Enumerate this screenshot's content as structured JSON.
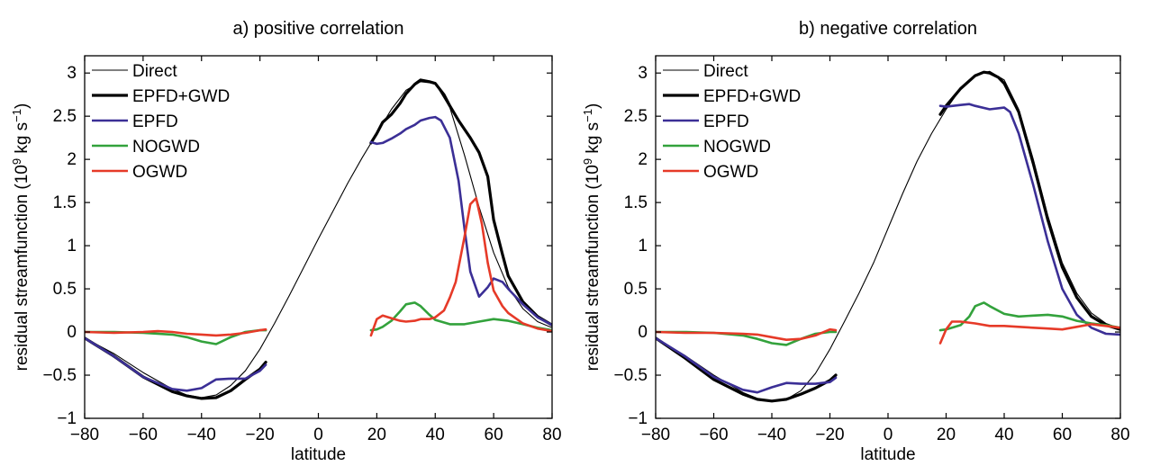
{
  "chart_data": [
    {
      "type": "line",
      "title": "a) positive correlation",
      "xlabel": "latitude",
      "ylabel_main": "residual streamfunction (10",
      "ylabel_exp1": "9",
      "ylabel_mid": " kg s",
      "ylabel_exp2": "−1",
      "ylabel_end": ")",
      "xlim": [
        -80,
        80
      ],
      "ylim": [
        -1,
        3.2
      ],
      "x_ticks": [
        -80,
        -60,
        -40,
        -20,
        0,
        20,
        40,
        60,
        80
      ],
      "y_ticks": [
        -1,
        -0.5,
        0,
        0.5,
        1,
        1.5,
        2,
        2.5,
        3
      ],
      "grid": false,
      "legend_position": "top-left",
      "series": [
        {
          "name": "Direct",
          "color": "#000000",
          "width": 1.1,
          "x": [
            -80,
            -70,
            -60,
            -50,
            -45,
            -40,
            -35,
            -30,
            -25,
            -20,
            -15,
            -10,
            -5,
            0,
            5,
            10,
            15,
            20,
            25,
            30,
            35,
            40,
            45,
            50,
            55,
            60,
            65,
            70,
            75,
            80
          ],
          "y": [
            -0.07,
            -0.25,
            -0.47,
            -0.66,
            -0.73,
            -0.76,
            -0.73,
            -0.62,
            -0.45,
            -0.2,
            0.1,
            0.42,
            0.75,
            1.08,
            1.4,
            1.72,
            2.02,
            2.3,
            2.58,
            2.8,
            2.9,
            2.88,
            2.6,
            2.05,
            1.45,
            0.92,
            0.52,
            0.27,
            0.12,
            0.05
          ]
        },
        {
          "name": "EPFD+GWD",
          "color": "#000000",
          "width": 3.2,
          "x": [
            -80,
            -70,
            -60,
            -50,
            -45,
            -40,
            -35,
            -30,
            -25,
            -20,
            -18,
            null,
            18,
            20,
            22,
            25,
            28,
            30,
            33,
            35,
            38,
            40,
            43,
            45,
            48,
            50,
            52,
            55,
            58,
            60,
            63,
            65,
            70,
            75,
            80
          ],
          "y": [
            -0.07,
            -0.28,
            -0.52,
            -0.69,
            -0.74,
            -0.77,
            -0.76,
            -0.68,
            -0.55,
            -0.43,
            -0.35,
            null,
            2.19,
            2.3,
            2.43,
            2.52,
            2.65,
            2.76,
            2.87,
            2.92,
            2.9,
            2.88,
            2.75,
            2.62,
            2.45,
            2.35,
            2.25,
            2.08,
            1.8,
            1.3,
            0.9,
            0.65,
            0.35,
            0.18,
            0.08
          ]
        },
        {
          "name": "EPFD",
          "color": "#3b2f96",
          "width": 2.6,
          "x": [
            -80,
            -70,
            -60,
            -50,
            -45,
            -40,
            -35,
            -30,
            -25,
            -20,
            -18,
            null,
            18,
            20,
            22,
            25,
            28,
            30,
            33,
            35,
            38,
            40,
            42,
            45,
            48,
            50,
            52,
            55,
            58,
            60,
            63,
            65,
            70,
            75,
            80
          ],
          "y": [
            -0.07,
            -0.28,
            -0.52,
            -0.66,
            -0.68,
            -0.65,
            -0.55,
            -0.54,
            -0.54,
            -0.45,
            -0.38,
            null,
            2.2,
            2.18,
            2.19,
            2.24,
            2.3,
            2.35,
            2.4,
            2.45,
            2.48,
            2.49,
            2.45,
            2.25,
            1.75,
            1.2,
            0.7,
            0.41,
            0.52,
            0.62,
            0.58,
            0.5,
            0.32,
            0.17,
            0.08
          ]
        },
        {
          "name": "NOGWD",
          "color": "#33a23c",
          "width": 2.6,
          "x": [
            -80,
            -70,
            -60,
            -50,
            -45,
            -40,
            -35,
            -30,
            -25,
            -20,
            -18,
            null,
            18,
            20,
            22,
            25,
            28,
            30,
            33,
            35,
            38,
            40,
            45,
            50,
            55,
            60,
            65,
            70,
            75,
            80
          ],
          "y": [
            0.0,
            0.0,
            -0.01,
            -0.03,
            -0.06,
            -0.11,
            -0.14,
            -0.06,
            0.0,
            0.02,
            0.02,
            null,
            0.02,
            0.03,
            0.06,
            0.13,
            0.24,
            0.32,
            0.34,
            0.3,
            0.2,
            0.14,
            0.09,
            0.09,
            0.12,
            0.15,
            0.13,
            0.09,
            0.05,
            0.02
          ]
        },
        {
          "name": "OGWD",
          "color": "#e63a28",
          "width": 2.6,
          "x": [
            -80,
            -70,
            -60,
            -55,
            -50,
            -45,
            -40,
            -35,
            -30,
            -25,
            -20,
            -18,
            null,
            18,
            20,
            22,
            25,
            28,
            30,
            33,
            35,
            38,
            40,
            43,
            45,
            47,
            50,
            52,
            54,
            56,
            58,
            60,
            63,
            65,
            70,
            75,
            80
          ],
          "y": [
            0.0,
            -0.01,
            0.0,
            0.01,
            0.0,
            -0.02,
            -0.03,
            -0.04,
            -0.03,
            -0.01,
            0.02,
            0.03,
            null,
            -0.04,
            0.15,
            0.19,
            0.16,
            0.13,
            0.12,
            0.13,
            0.15,
            0.15,
            0.17,
            0.25,
            0.4,
            0.58,
            1.1,
            1.48,
            1.55,
            1.25,
            0.8,
            0.48,
            0.3,
            0.22,
            0.1,
            0.04,
            0.01
          ]
        }
      ]
    },
    {
      "type": "line",
      "title": "b) negative correlation",
      "xlabel": "latitude",
      "ylabel_main": "residual streamfunction (10",
      "ylabel_exp1": "9",
      "ylabel_mid": " kg s",
      "ylabel_exp2": "−1",
      "ylabel_end": ")",
      "xlim": [
        -80,
        80
      ],
      "ylim": [
        -1,
        3.2
      ],
      "x_ticks": [
        -80,
        -60,
        -40,
        -20,
        0,
        20,
        40,
        60,
        80
      ],
      "y_ticks": [
        -1,
        -0.5,
        0,
        0.5,
        1,
        1.5,
        2,
        2.5,
        3
      ],
      "grid": false,
      "legend_position": "top-left",
      "series": [
        {
          "name": "Direct",
          "color": "#000000",
          "width": 1.1,
          "x": [
            -80,
            -70,
            -60,
            -50,
            -45,
            -40,
            -35,
            -30,
            -25,
            -20,
            -15,
            -10,
            -5,
            0,
            5,
            10,
            15,
            20,
            25,
            30,
            35,
            40,
            45,
            50,
            55,
            60,
            65,
            70,
            75,
            80
          ],
          "y": [
            -0.07,
            -0.27,
            -0.5,
            -0.7,
            -0.77,
            -0.8,
            -0.78,
            -0.68,
            -0.48,
            -0.2,
            0.12,
            0.45,
            0.8,
            1.2,
            1.6,
            1.98,
            2.3,
            2.58,
            2.82,
            2.98,
            3.02,
            2.92,
            2.58,
            2.0,
            1.35,
            0.8,
            0.45,
            0.22,
            0.1,
            0.04
          ]
        },
        {
          "name": "EPFD+GWD",
          "color": "#000000",
          "width": 3.2,
          "x": [
            -80,
            -70,
            -60,
            -50,
            -45,
            -40,
            -35,
            -30,
            -25,
            -20,
            -18,
            null,
            18,
            20,
            25,
            30,
            33,
            35,
            38,
            40,
            45,
            50,
            55,
            60,
            65,
            70,
            75,
            80
          ],
          "y": [
            -0.07,
            -0.3,
            -0.55,
            -0.72,
            -0.78,
            -0.8,
            -0.78,
            -0.72,
            -0.65,
            -0.56,
            -0.5,
            null,
            2.52,
            2.62,
            2.82,
            2.97,
            3.01,
            3.0,
            2.95,
            2.88,
            2.55,
            1.95,
            1.3,
            0.75,
            0.4,
            0.18,
            0.08,
            0.03
          ]
        },
        {
          "name": "EPFD",
          "color": "#3b2f96",
          "width": 2.6,
          "x": [
            -80,
            -70,
            -60,
            -50,
            -45,
            -40,
            -35,
            -30,
            -25,
            -20,
            -18,
            null,
            18,
            20,
            25,
            28,
            30,
            35,
            40,
            42,
            45,
            50,
            55,
            60,
            65,
            70,
            75,
            80
          ],
          "y": [
            -0.07,
            -0.28,
            -0.52,
            -0.67,
            -0.7,
            -0.64,
            -0.59,
            -0.6,
            -0.6,
            -0.58,
            -0.53,
            null,
            2.62,
            2.61,
            2.63,
            2.64,
            2.62,
            2.58,
            2.6,
            2.55,
            2.3,
            1.7,
            1.05,
            0.5,
            0.2,
            0.05,
            -0.02,
            -0.03
          ]
        },
        {
          "name": "NOGWD",
          "color": "#33a23c",
          "width": 2.6,
          "x": [
            -80,
            -70,
            -60,
            -50,
            -45,
            -40,
            -35,
            -30,
            -25,
            -20,
            -18,
            null,
            18,
            20,
            25,
            28,
            30,
            33,
            35,
            40,
            45,
            50,
            55,
            60,
            65,
            70,
            75,
            80
          ],
          "y": [
            0.0,
            0.0,
            -0.01,
            -0.04,
            -0.08,
            -0.13,
            -0.15,
            -0.08,
            -0.02,
            0.0,
            0.0,
            null,
            0.02,
            0.03,
            0.08,
            0.18,
            0.3,
            0.34,
            0.3,
            0.21,
            0.18,
            0.19,
            0.2,
            0.18,
            0.13,
            0.1,
            0.08,
            0.05
          ]
        },
        {
          "name": "OGWD",
          "color": "#e63a28",
          "width": 2.6,
          "x": [
            -80,
            -70,
            -60,
            -50,
            -45,
            -40,
            -35,
            -30,
            -25,
            -20,
            -18,
            null,
            18,
            20,
            22,
            25,
            30,
            35,
            40,
            45,
            50,
            55,
            60,
            65,
            70,
            75,
            80
          ],
          "y": [
            0.0,
            -0.01,
            -0.01,
            -0.02,
            -0.03,
            -0.06,
            -0.09,
            -0.08,
            -0.04,
            0.03,
            0.02,
            null,
            -0.13,
            0.03,
            0.12,
            0.12,
            0.1,
            0.07,
            0.07,
            0.06,
            0.05,
            0.04,
            0.03,
            0.06,
            0.09,
            0.07,
            0.05
          ]
        }
      ]
    }
  ]
}
